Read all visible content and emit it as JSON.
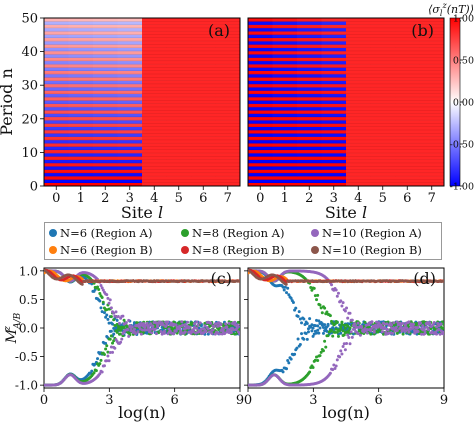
{
  "chart_data": [
    {
      "panel": "(a)",
      "type": "heatmap",
      "xlabel": "Site l",
      "ylabel": "Period n",
      "x_ticks": [
        "0",
        "1",
        "2",
        "3",
        "4",
        "5",
        "6",
        "7"
      ],
      "y_ticks": [
        "0",
        "10",
        "20",
        "30",
        "40",
        "50"
      ],
      "ylim": [
        0,
        50
      ],
      "description_of_values": "sites 0-3: <σ^z> alternates sign each period with amplitude decaying from ~1 to ~0.3 at n=50; sites 4-7: ~0.85",
      "region_A_sites": [
        0,
        1,
        2,
        3
      ],
      "region_A_amplitude_start": 1.0,
      "region_A_amplitude_end": 0.3,
      "region_B_value": 0.85
    },
    {
      "panel": "(b)",
      "type": "heatmap",
      "xlabel": "Site l",
      "x_ticks": [
        "0",
        "1",
        "2",
        "3",
        "4",
        "5",
        "6",
        "7"
      ],
      "ylim": [
        0,
        50
      ],
      "region_A_sites": [
        0,
        1,
        2,
        3
      ],
      "region_A_amplitude_start": 1.0,
      "region_A_amplitude_end": 0.95,
      "region_B_value": 0.85
    },
    {
      "colorbar": {
        "label": "⟨σ_l^z(nT)⟩",
        "ticks": [
          "1.00",
          "0.50",
          "0.00",
          "-0.50",
          "-1.00"
        ],
        "range": [
          -1,
          1
        ]
      }
    },
    {
      "panel": "(c)",
      "type": "scatter",
      "xlabel": "log(n)",
      "ylabel": "M^z_{A/B}",
      "x_ticks": [
        "0",
        "3",
        "6",
        "9"
      ],
      "y_ticks": [
        "-1.0",
        "-0.5",
        "0.0",
        "0.5",
        "1.0"
      ],
      "xlim": [
        0,
        9
      ],
      "ylim": [
        -1.05,
        1.05
      ],
      "region_B_value": 0.82,
      "region_A_decay_center": {
        "N=6": 2.5,
        "N=8": 2.7,
        "N=10": 3.0
      }
    },
    {
      "panel": "(d)",
      "type": "scatter",
      "xlabel": "log(n)",
      "x_ticks": [
        "0",
        "3",
        "6",
        "9"
      ],
      "xlim": [
        0,
        9
      ],
      "ylim": [
        -1.05,
        1.05
      ],
      "region_B_value": 0.82,
      "region_A_decay_center": {
        "N=6": 2.0,
        "N=8": 3.2,
        "N=10": 4.2
      }
    }
  ],
  "legend": [
    {
      "label": "N=6 (Region A)",
      "color": "#1f77b4"
    },
    {
      "label": "N=8 (Region A)",
      "color": "#2ca02c"
    },
    {
      "label": "N=10 (Region A)",
      "color": "#9467bd"
    },
    {
      "label": "N=6 (Region B)",
      "color": "#ff7f0e"
    },
    {
      "label": "N=8 (Region B)",
      "color": "#d62728"
    },
    {
      "label": "N=10 (Region B)",
      "color": "#8c564b"
    }
  ],
  "panel_labels": {
    "a": "(a)",
    "b": "(b)",
    "c": "(c)",
    "d": "(d)"
  },
  "axis_labels": {
    "site": "Site",
    "site_var": "l",
    "period": "Period n",
    "logn": "log(n)"
  }
}
